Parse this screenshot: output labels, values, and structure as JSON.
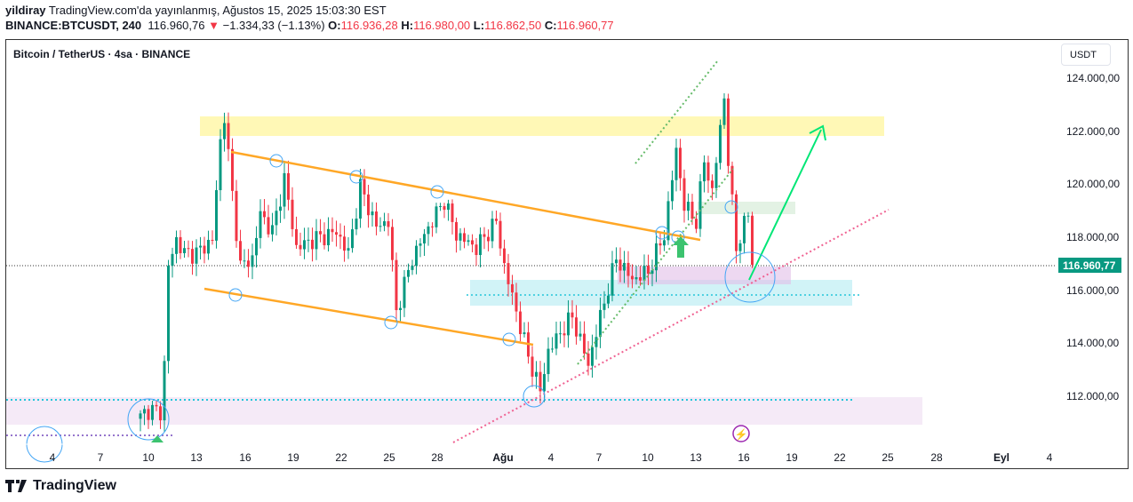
{
  "header": {
    "author": "yildiray",
    "published": "TradingView.com'da yayınlanmış, Ağustos 15, 2025 15:03:30 EST",
    "symbol": "BINANCE:BTCUSDT, 240",
    "last": "116.960,76",
    "change": "−1.334,33 (−1.13%)",
    "o_label": "O:",
    "o": "116.936,28",
    "h_label": "H:",
    "h": "116.980,00",
    "l_label": "L:",
    "l": "116.862,50",
    "c_label": "C:",
    "c": "116.960,77"
  },
  "chart_title": "Bitcoin / TetherUS · 4sa · BINANCE",
  "currency_button": "USDT",
  "price_label": "116.960,77",
  "brand": "TradingView",
  "colors": {
    "up": "#089981",
    "down": "#f23645",
    "channel": "#ffa726",
    "resistance_zone": "#fff59d",
    "support_zone": "#b2ebf2",
    "demand_zone": "#f3e5f5",
    "target_arrow": "#00e676",
    "trendline": "#f06292"
  },
  "icons": {
    "lightning": "lightning-icon",
    "buy_arrow": "arrow-up-icon",
    "logo": "tradingview-logo-icon"
  },
  "chart_data": {
    "type": "candlestick",
    "ylim": [
      109500,
      125500
    ],
    "y_ticks": [
      {
        "v": 124000,
        "label": "124.000,00"
      },
      {
        "v": 122000,
        "label": "122.000,00"
      },
      {
        "v": 120000,
        "label": "120.000,00"
      },
      {
        "v": 118000,
        "label": "118.000,00"
      },
      {
        "v": 116000,
        "label": "116.000,00"
      },
      {
        "v": 114000,
        "label": "114.000,00"
      },
      {
        "v": 112000,
        "label": "112.000,00"
      }
    ],
    "x_ticks": [
      "4",
      "7",
      "10",
      "13",
      "16",
      "19",
      "22",
      "25",
      "28",
      "Ağu",
      "4",
      "7",
      "10",
      "13",
      "16",
      "19",
      "22",
      "25",
      "28",
      "Eyl",
      "4"
    ],
    "last_price": 116960.77,
    "close_path": [
      [
        0,
        111200
      ],
      [
        2,
        111500
      ],
      [
        5,
        111400
      ],
      [
        6,
        113200
      ],
      [
        7,
        116900
      ],
      [
        9,
        117900
      ],
      [
        11,
        117400
      ],
      [
        14,
        117400
      ],
      [
        18,
        117900
      ],
      [
        20,
        121600
      ],
      [
        21,
        122600
      ],
      [
        23,
        119600
      ],
      [
        25,
        116900
      ],
      [
        28,
        117200
      ],
      [
        30,
        118900
      ],
      [
        33,
        118200
      ],
      [
        36,
        120200
      ],
      [
        39,
        117600
      ],
      [
        43,
        117900
      ],
      [
        49,
        118200
      ],
      [
        52,
        117400
      ],
      [
        55,
        119900
      ],
      [
        59,
        118400
      ],
      [
        62,
        118600
      ],
      [
        64,
        115200
      ],
      [
        68,
        117200
      ],
      [
        71,
        118100
      ],
      [
        76,
        119400
      ],
      [
        79,
        118100
      ],
      [
        84,
        117600
      ],
      [
        89,
        118600
      ],
      [
        91,
        116900
      ],
      [
        94,
        115200
      ],
      [
        97,
        113500
      ],
      [
        100,
        112200
      ],
      [
        102,
        113700
      ],
      [
        105,
        114400
      ],
      [
        108,
        115000
      ],
      [
        112,
        113200
      ],
      [
        115,
        115000
      ],
      [
        119,
        117200
      ],
      [
        123,
        116400
      ],
      [
        127,
        116700
      ],
      [
        131,
        118100
      ],
      [
        134,
        121300
      ],
      [
        136,
        119200
      ],
      [
        139,
        118600
      ],
      [
        141,
        120900
      ],
      [
        143,
        119700
      ],
      [
        146,
        123300
      ],
      [
        147,
        120900
      ],
      [
        149,
        117600
      ],
      [
        152,
        118900
      ],
      [
        153,
        116900
      ]
    ]
  }
}
